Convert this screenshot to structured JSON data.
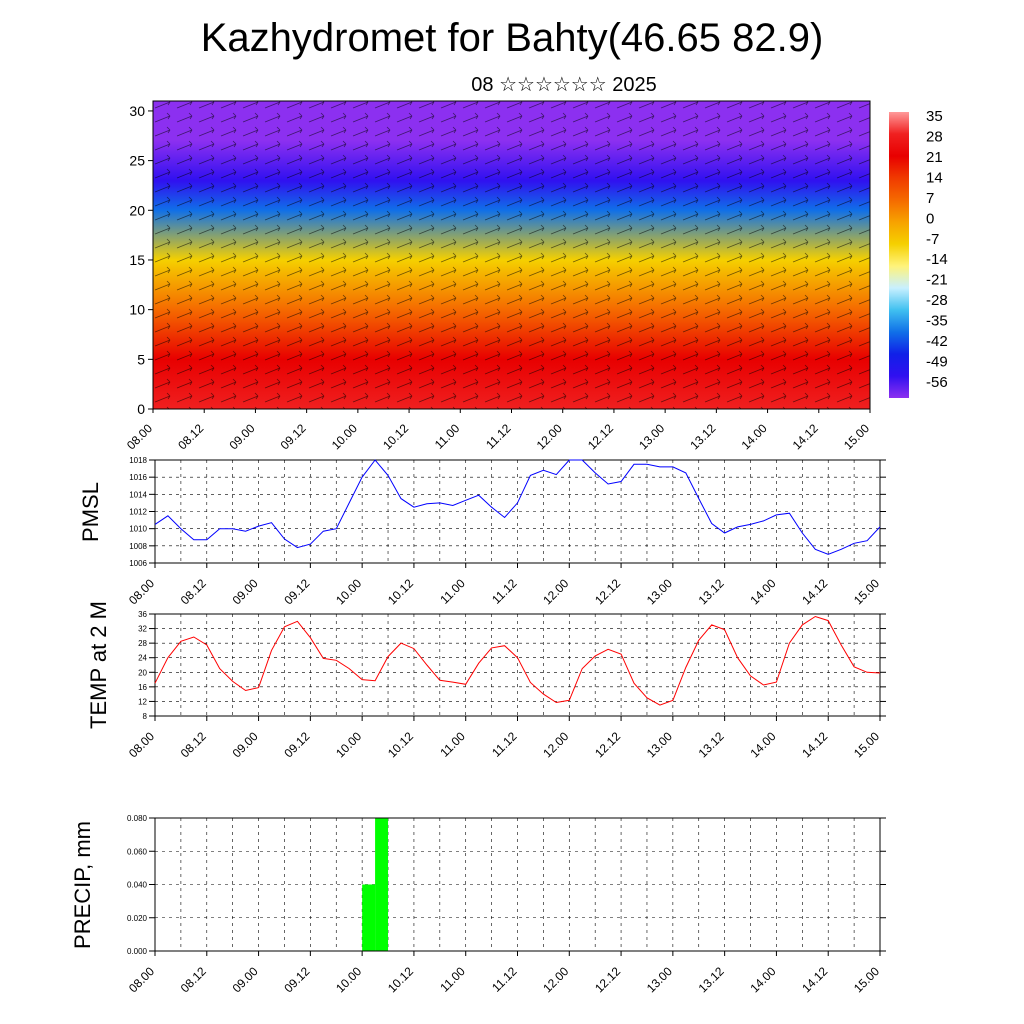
{
  "header": {
    "title": "Kazhydromet for Bahty(46.65 82.9)",
    "subtitle": "08 ☆☆☆☆☆☆ 2025"
  },
  "chart_data": [
    {
      "type": "heatmap",
      "name": "temperature-wind-profile",
      "x_ticks": [
        "08.00",
        "08.12",
        "09.00",
        "09.12",
        "10.00",
        "10.12",
        "11.00",
        "11.12",
        "12.00",
        "12.12",
        "13.00",
        "13.12",
        "14.00",
        "14.12",
        "15.00"
      ],
      "y_ticks": [
        0,
        5,
        10,
        15,
        20,
        25,
        30
      ],
      "ylim": [
        0,
        31
      ],
      "colorbar": {
        "labels": [
          "35",
          "28",
          "21",
          "14",
          "7",
          "0",
          "-7",
          "-14",
          "-21",
          "-28",
          "-35",
          "-42",
          "-49",
          "-56"
        ],
        "colors": [
          "#ff9a9a",
          "#f02020",
          "#e80000",
          "#f03a00",
          "#f56a00",
          "#f7a200",
          "#f5d000",
          "#fff37a",
          "#c8f0ff",
          "#40c0f0",
          "#1070e8",
          "#1020e8",
          "#3010f0",
          "#8c30f0"
        ]
      },
      "vertical_profile": [
        {
          "height": 0,
          "value": 28
        },
        {
          "height": 5,
          "value": 21
        },
        {
          "height": 10,
          "value": 7
        },
        {
          "height": 15,
          "value": -10
        },
        {
          "height": 20,
          "value": -35
        },
        {
          "height": 23,
          "value": -52
        },
        {
          "height": 27,
          "value": -56
        },
        {
          "height": 31,
          "value": -56
        }
      ],
      "grid": false
    },
    {
      "type": "line",
      "name": "pmsl",
      "ylabel": "PMSL",
      "ylim": [
        1006,
        1018
      ],
      "y_ticks": [
        1006,
        1008,
        1010,
        1012,
        1014,
        1016,
        1018
      ],
      "x_ticks": [
        "08.00",
        "08.12",
        "09.00",
        "09.12",
        "10.00",
        "10.12",
        "11.00",
        "11.12",
        "12.00",
        "12.12",
        "13.00",
        "13.12",
        "14.00",
        "14.12",
        "15.00"
      ],
      "color": "#0000ff",
      "grid": true,
      "x": [
        0,
        3,
        6,
        9,
        12,
        15,
        18,
        21,
        24,
        27,
        30,
        33,
        36,
        39,
        42,
        45,
        48,
        51,
        54,
        57,
        60,
        63,
        66,
        69,
        72,
        75,
        78,
        81,
        84,
        87,
        90,
        93,
        96,
        99,
        102,
        105,
        108,
        111,
        114,
        117,
        120,
        123,
        126,
        129,
        132,
        135,
        138,
        141,
        144,
        147,
        150,
        153,
        156,
        159,
        162,
        165,
        168
      ],
      "values": [
        1010.5,
        1011.5,
        1010.0,
        1008.7,
        1008.7,
        1010.0,
        1010.0,
        1009.7,
        1010.3,
        1010.7,
        1008.8,
        1007.8,
        1008.2,
        1009.7,
        1010.0,
        1013.0,
        1016.0,
        1018.0,
        1016.2,
        1013.5,
        1012.5,
        1012.9,
        1013.0,
        1012.7,
        1013.3,
        1013.9,
        1012.5,
        1011.3,
        1013.0,
        1016.2,
        1016.8,
        1016.3,
        1018.0,
        1018.0,
        1016.5,
        1015.2,
        1015.5,
        1017.5,
        1017.5,
        1017.2,
        1017.2,
        1016.5,
        1013.5,
        1010.6,
        1009.5,
        1010.2,
        1010.5,
        1010.9,
        1011.6,
        1011.8,
        1009.5,
        1007.6,
        1007.0,
        1007.6,
        1008.3,
        1008.6,
        1010.2
      ]
    },
    {
      "type": "line",
      "name": "temp-2m",
      "ylabel": "TEMP at 2 M",
      "ylim": [
        8,
        36
      ],
      "y_ticks": [
        8,
        12,
        16,
        20,
        24,
        28,
        32,
        36
      ],
      "x_ticks": [
        "08.00",
        "08.12",
        "09.00",
        "09.12",
        "10.00",
        "10.12",
        "11.00",
        "11.12",
        "12.00",
        "12.12",
        "13.00",
        "13.12",
        "14.00",
        "14.12",
        "15.00"
      ],
      "color": "#ff0000",
      "grid": true,
      "x": [
        0,
        3,
        6,
        9,
        12,
        15,
        18,
        21,
        24,
        27,
        30,
        33,
        36,
        39,
        42,
        45,
        48,
        51,
        54,
        57,
        60,
        63,
        66,
        69,
        72,
        75,
        78,
        81,
        84,
        87,
        90,
        93,
        96,
        99,
        102,
        105,
        108,
        111,
        114,
        117,
        120,
        123,
        126,
        129,
        132,
        135,
        138,
        141,
        144,
        147,
        150,
        153,
        156,
        159,
        162,
        165,
        168
      ],
      "values": [
        17.0,
        24.0,
        28.5,
        29.7,
        27.5,
        21.0,
        17.5,
        15.0,
        15.8,
        26.0,
        32.5,
        34.0,
        29.5,
        23.8,
        23.3,
        21.0,
        18.0,
        17.7,
        24.3,
        28.0,
        26.5,
        22.0,
        17.8,
        17.3,
        16.7,
        22.5,
        26.7,
        27.3,
        24.0,
        17.2,
        14.0,
        11.7,
        12.3,
        21.0,
        24.5,
        26.3,
        25.0,
        17.0,
        13.0,
        11.0,
        12.3,
        21.3,
        28.8,
        33.0,
        31.7,
        24.0,
        19.0,
        16.5,
        17.3,
        28.0,
        33.0,
        35.3,
        34.2,
        27.5,
        21.5,
        20.0,
        19.8
      ]
    },
    {
      "type": "bar",
      "name": "precip",
      "ylabel": "PRECIP, mm",
      "ylim": [
        0,
        0.08
      ],
      "y_ticks": [
        "0.000",
        "0.020",
        "0.040",
        "0.060",
        "0.080"
      ],
      "x_ticks": [
        "08.00",
        "08.12",
        "09.00",
        "09.12",
        "10.00",
        "10.12",
        "11.00",
        "11.12",
        "12.00",
        "12.12",
        "13.00",
        "13.12",
        "14.00",
        "14.12",
        "15.00"
      ],
      "color": "#00ff00",
      "grid": true,
      "bars": [
        {
          "x_start": 48,
          "x_end": 51,
          "value": 0.04
        },
        {
          "x_start": 51,
          "x_end": 54,
          "value": 0.08
        }
      ]
    }
  ]
}
